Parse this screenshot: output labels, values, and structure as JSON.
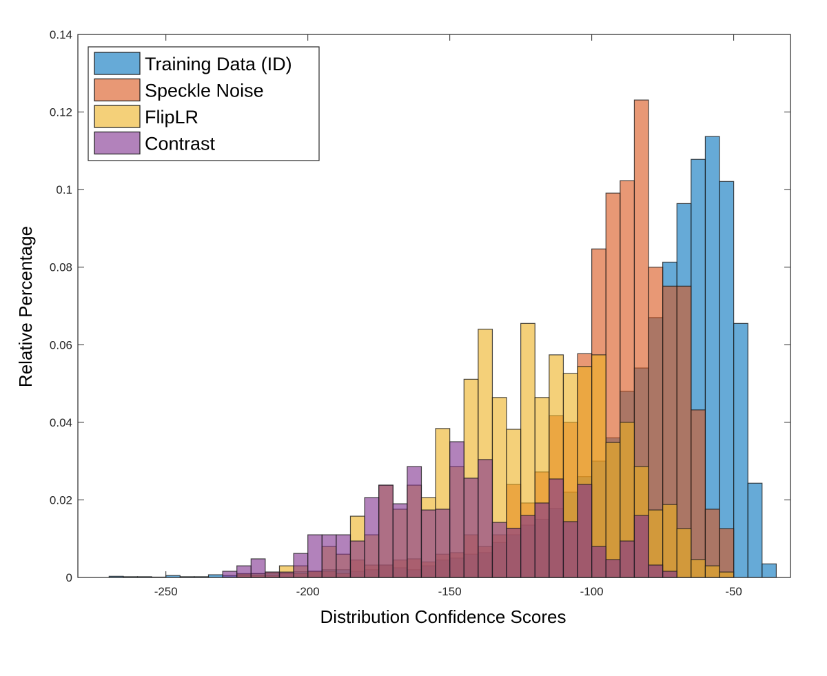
{
  "chart_data": {
    "type": "histogram",
    "title": "",
    "xlabel": "Distribution Confidence Scores",
    "ylabel": "Relative Percentage",
    "xlim": [
      -281,
      -30
    ],
    "ylim": [
      0,
      0.14
    ],
    "xticks": [
      -250,
      -200,
      -150,
      -100,
      -50
    ],
    "xtick_labels": [
      "-250",
      "-200",
      "-150",
      "-100",
      "-50"
    ],
    "yticks": [
      0,
      0.02,
      0.04,
      0.06,
      0.08,
      0.1,
      0.12,
      0.14
    ],
    "ytick_labels": [
      "0",
      "0.02",
      "0.04",
      "0.06",
      "0.08",
      "0.1",
      "0.12",
      "0.14"
    ],
    "grid": false,
    "legend_position": "top-left",
    "bin_start": -270,
    "bin_width": 5,
    "series": [
      {
        "name": "Training Data (ID)",
        "color": "#0072BD",
        "values": [
          0.0003,
          0.0002,
          0.0002,
          0.0001,
          0.0005,
          0.0002,
          0.0002,
          0.0007,
          0.0005,
          0.0008,
          0.001,
          0.001,
          0.0012,
          0.0015,
          0.0015,
          0.002,
          0.002,
          0.0016,
          0.002,
          0.0032,
          0.0025,
          0.002,
          0.003,
          0.0045,
          0.005,
          0.006,
          0.0064,
          0.009,
          0.011,
          0.0135,
          0.015,
          0.0178,
          0.022,
          0.026,
          0.03,
          0.036,
          0.048,
          0.054,
          0.067,
          0.0813,
          0.0964,
          0.1078,
          0.1137,
          0.1021,
          0.0655,
          0.0243,
          0.0035
        ]
      },
      {
        "name": "Speckle Noise",
        "color": "#D95319",
        "values": [
          0,
          0,
          0,
          0,
          0,
          0,
          0,
          0,
          0,
          0.0005,
          0.0005,
          0.0005,
          0.001,
          0.001,
          0.0016,
          0.0016,
          0.001,
          0.0045,
          0.0032,
          0.0032,
          0.0045,
          0.0048,
          0.004,
          0.006,
          0.0064,
          0.011,
          0.008,
          0.011,
          0.024,
          0.0192,
          0.0272,
          0.0417,
          0.04,
          0.0577,
          0.0847,
          0.0991,
          0.1023,
          0.1231,
          0.08,
          0.0751,
          0.0751,
          0.0432,
          0.0176,
          0.0126,
          0,
          0,
          0
        ]
      },
      {
        "name": "FlipLR",
        "color": "#EDB120",
        "values": [
          0,
          0,
          0,
          0,
          0,
          0,
          0,
          0,
          0,
          0.001,
          0.001,
          0.0014,
          0.003,
          0.003,
          0.0016,
          0.008,
          0.006,
          0.0158,
          0.011,
          0.0238,
          0.0176,
          0.0238,
          0.0206,
          0.0384,
          0.0286,
          0.0511,
          0.064,
          0.0464,
          0.0382,
          0.0655,
          0.0464,
          0.0574,
          0.0526,
          0.0544,
          0.0574,
          0.0348,
          0.04,
          0.0286,
          0.0174,
          0.0188,
          0.0126,
          0.0046,
          0.003,
          0.0014,
          0,
          0,
          0
        ]
      },
      {
        "name": "Contrast",
        "color": "#7E2F8E",
        "values": [
          0,
          0,
          0,
          0,
          0,
          0,
          0,
          0,
          0.0016,
          0.003,
          0.0048,
          0.0014,
          0.0014,
          0.0062,
          0.011,
          0.011,
          0.011,
          0.0094,
          0.0206,
          0.0238,
          0.019,
          0.0286,
          0.0174,
          0.0176,
          0.035,
          0.0256,
          0.0304,
          0.0142,
          0.0127,
          0.016,
          0.0192,
          0.0254,
          0.0144,
          0.024,
          0.008,
          0.0046,
          0.0094,
          0.016,
          0.0032,
          0.0016,
          0,
          0,
          0,
          0,
          0,
          0,
          0
        ]
      }
    ]
  }
}
